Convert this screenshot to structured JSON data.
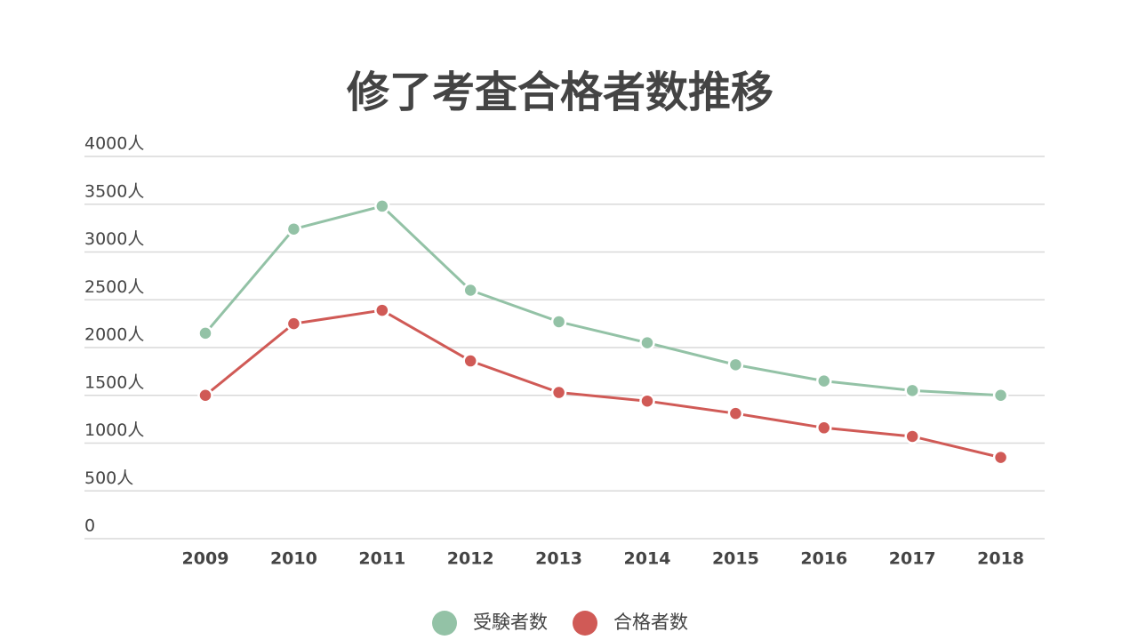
{
  "chart_data": {
    "type": "line",
    "title": "修了考査合格者数推移",
    "categories": [
      "2009",
      "2010",
      "2011",
      "2012",
      "2013",
      "2014",
      "2015",
      "2016",
      "2017",
      "2018"
    ],
    "series": [
      {
        "name": "受験者数",
        "color": "#93c2a6",
        "values": [
          2150,
          3240,
          3480,
          2600,
          2270,
          2050,
          1820,
          1650,
          1550,
          1500
        ]
      },
      {
        "name": "合格者数",
        "color": "#d05a56",
        "values": [
          1500,
          2250,
          2390,
          1860,
          1530,
          1440,
          1310,
          1160,
          1070,
          850
        ]
      }
    ],
    "ylim": [
      0,
      4000
    ],
    "yticks": [
      0,
      {
        "value": 500,
        "label": "500人"
      },
      {
        "value": 1000,
        "label": "1000人"
      },
      {
        "value": 1500,
        "label": "1500人"
      },
      {
        "value": 2000,
        "label": "2000人"
      },
      {
        "value": 2500,
        "label": "2500人"
      },
      {
        "value": 3000,
        "label": "3000人"
      },
      {
        "value": 3500,
        "label": "3500人"
      },
      {
        "value": 4000,
        "label": "4000人"
      }
    ],
    "grid": true
  }
}
